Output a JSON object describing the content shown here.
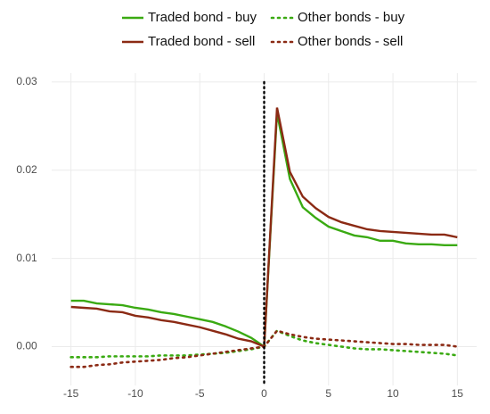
{
  "chart_data": {
    "type": "line",
    "x": [
      -15,
      -14,
      -13,
      -12,
      -11,
      -10,
      -9,
      -8,
      -7,
      -6,
      -5,
      -4,
      -3,
      -2,
      -1,
      0,
      1,
      2,
      3,
      4,
      5,
      6,
      7,
      8,
      9,
      10,
      11,
      12,
      13,
      14,
      15
    ],
    "series": [
      {
        "name": "Traded bond - buy",
        "color": "#3aaa12",
        "linestyle": "solid",
        "values": [
          0.0052,
          0.0052,
          0.0049,
          0.0048,
          0.0047,
          0.0044,
          0.0042,
          0.0039,
          0.0037,
          0.0034,
          0.0031,
          0.0028,
          0.0023,
          0.0017,
          0.001,
          0.0,
          0.0265,
          0.019,
          0.0158,
          0.0146,
          0.0136,
          0.0131,
          0.0126,
          0.0124,
          0.012,
          0.012,
          0.0117,
          0.0116,
          0.0116,
          0.0115,
          0.0115
        ]
      },
      {
        "name": "Other bonds - buy",
        "color": "#3aaa12",
        "linestyle": "dotted",
        "values": [
          -0.0012,
          -0.0012,
          -0.0012,
          -0.0011,
          -0.0011,
          -0.0011,
          -0.0011,
          -0.001,
          -0.001,
          -0.001,
          -0.0009,
          -0.0008,
          -0.0007,
          -0.0005,
          -0.0003,
          0.0,
          0.0018,
          0.0012,
          0.0007,
          0.0004,
          0.0002,
          0.0,
          -0.0002,
          -0.0003,
          -0.0003,
          -0.0004,
          -0.0005,
          -0.0006,
          -0.0007,
          -0.0008,
          -0.001
        ]
      },
      {
        "name": "Traded bond - sell",
        "color": "#8b2a14",
        "linestyle": "solid",
        "values": [
          0.0045,
          0.0044,
          0.0043,
          0.004,
          0.0039,
          0.0035,
          0.0033,
          0.003,
          0.0028,
          0.0025,
          0.0022,
          0.0018,
          0.0014,
          0.0009,
          0.0006,
          0.0,
          0.0271,
          0.0198,
          0.017,
          0.0157,
          0.0147,
          0.0141,
          0.0137,
          0.0133,
          0.0131,
          0.013,
          0.0129,
          0.0128,
          0.0127,
          0.0127,
          0.0124
        ]
      },
      {
        "name": "Other bonds - sell",
        "color": "#8b2a14",
        "linestyle": "dotted",
        "values": [
          -0.0023,
          -0.0023,
          -0.0021,
          -0.002,
          -0.0018,
          -0.0017,
          -0.0016,
          -0.0015,
          -0.0013,
          -0.0012,
          -0.001,
          -0.0008,
          -0.0006,
          -0.0004,
          -0.0002,
          0.0,
          0.0018,
          0.0014,
          0.0011,
          0.0009,
          0.0008,
          0.0007,
          0.0006,
          0.0005,
          0.0004,
          0.0003,
          0.0003,
          0.0002,
          0.0002,
          0.0002,
          0.0
        ]
      }
    ],
    "xlim": [
      -16.5,
      16.5
    ],
    "xticks": [
      -15,
      -10,
      -5,
      0,
      5,
      10,
      15
    ],
    "ylim": [
      -0.0044,
      0.031
    ],
    "yticks": [
      {
        "value": 0,
        "label": "0.00"
      },
      0.01,
      0.02,
      0.03
    ],
    "vline": 0,
    "grid": true,
    "legend": "top"
  }
}
